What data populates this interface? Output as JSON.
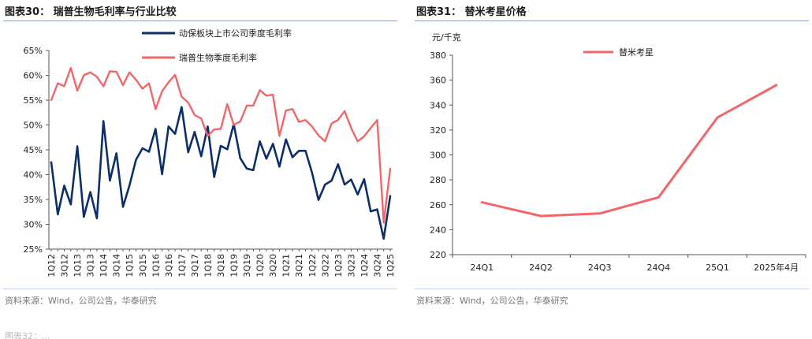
{
  "left_panel": {
    "title": "图表30：  瑞普生物毛利率与行业比较",
    "source": "资料来源：Wind，公司公告，华泰研究"
  },
  "right_panel": {
    "title": "图表31：  替米考星价格",
    "source": "资料来源：Wind，公司公告，华泰研究"
  },
  "cut_off_text": "图表32：...",
  "chart_data": [
    {
      "type": "line",
      "title": "",
      "xlabel": "",
      "ylabel": "",
      "ylim": [
        0.25,
        0.65
      ],
      "yticks": [
        "25%",
        "30%",
        "35%",
        "40%",
        "45%",
        "50%",
        "55%",
        "60%",
        "65%"
      ],
      "x": [
        "1Q12",
        "2Q12",
        "3Q12",
        "4Q12",
        "1Q13",
        "2Q13",
        "3Q13",
        "4Q13",
        "1Q14",
        "2Q14",
        "3Q14",
        "4Q14",
        "1Q15",
        "2Q15",
        "3Q15",
        "4Q15",
        "1Q16",
        "2Q16",
        "3Q16",
        "4Q16",
        "1Q17",
        "2Q17",
        "3Q17",
        "4Q17",
        "1Q18",
        "2Q18",
        "3Q18",
        "4Q18",
        "1Q19",
        "2Q19",
        "3Q19",
        "4Q19",
        "1Q20",
        "2Q20",
        "3Q20",
        "4Q20",
        "1Q21",
        "2Q21",
        "3Q21",
        "4Q21",
        "1Q22",
        "2Q22",
        "3Q22",
        "4Q22",
        "1Q23",
        "2Q23",
        "3Q23",
        "4Q23",
        "1Q24",
        "2Q24",
        "3Q24",
        "4Q24",
        "1Q25"
      ],
      "xtick_labels": [
        "1Q12",
        "3Q12",
        "1Q13",
        "3Q13",
        "1Q14",
        "3Q14",
        "1Q15",
        "3Q15",
        "1Q16",
        "3Q16",
        "1Q17",
        "3Q17",
        "1Q18",
        "3Q18",
        "1Q19",
        "3Q19",
        "1Q20",
        "3Q20",
        "1Q21",
        "3Q21",
        "1Q22",
        "3Q22",
        "1Q23",
        "3Q23",
        "1Q24",
        "3Q24",
        "1Q25"
      ],
      "legend_position": "top-center",
      "grid": false,
      "series": [
        {
          "name": "动保板块上市公司季度毛利率",
          "color": "#0c2f6b",
          "values": [
            0.425,
            0.32,
            0.378,
            0.34,
            0.457,
            0.315,
            0.365,
            0.312,
            0.508,
            0.388,
            0.443,
            0.335,
            0.378,
            0.43,
            0.453,
            0.446,
            0.492,
            0.401,
            0.497,
            0.482,
            0.536,
            0.445,
            0.486,
            0.437,
            0.497,
            0.395,
            0.458,
            0.451,
            0.502,
            0.433,
            0.412,
            0.409,
            0.467,
            0.432,
            0.462,
            0.416,
            0.471,
            0.435,
            0.448,
            0.448,
            0.404,
            0.349,
            0.38,
            0.388,
            0.421,
            0.38,
            0.39,
            0.36,
            0.391,
            0.326,
            0.33,
            0.271,
            0.357
          ]
        },
        {
          "name": "瑞普生物季度毛利率",
          "color": "#f2666a",
          "values": [
            0.55,
            0.584,
            0.578,
            0.615,
            0.569,
            0.6,
            0.606,
            0.597,
            0.578,
            0.608,
            0.607,
            0.58,
            0.606,
            0.591,
            0.573,
            0.584,
            0.532,
            0.568,
            0.586,
            0.601,
            0.557,
            0.545,
            0.52,
            0.513,
            0.478,
            0.491,
            0.492,
            0.542,
            0.5,
            0.507,
            0.539,
            0.539,
            0.57,
            0.559,
            0.561,
            0.478,
            0.529,
            0.532,
            0.506,
            0.51,
            0.497,
            0.479,
            0.467,
            0.503,
            0.51,
            0.528,
            0.494,
            0.467,
            0.477,
            0.494,
            0.51,
            0.303,
            0.412
          ]
        }
      ]
    },
    {
      "type": "line",
      "title": "",
      "xlabel": "",
      "ylabel": "元/千克",
      "ylim": [
        220,
        380
      ],
      "yticks": [
        "220",
        "240",
        "260",
        "280",
        "300",
        "320",
        "340",
        "360",
        "380"
      ],
      "categories": [
        "24Q1",
        "24Q2",
        "24Q3",
        "24Q4",
        "25Q1",
        "2025年4月"
      ],
      "legend_position": "top-center",
      "grid": false,
      "series": [
        {
          "name": "替米考星",
          "color": "#f2666a",
          "values": [
            262,
            251,
            253,
            266,
            330,
            356
          ]
        }
      ]
    }
  ]
}
